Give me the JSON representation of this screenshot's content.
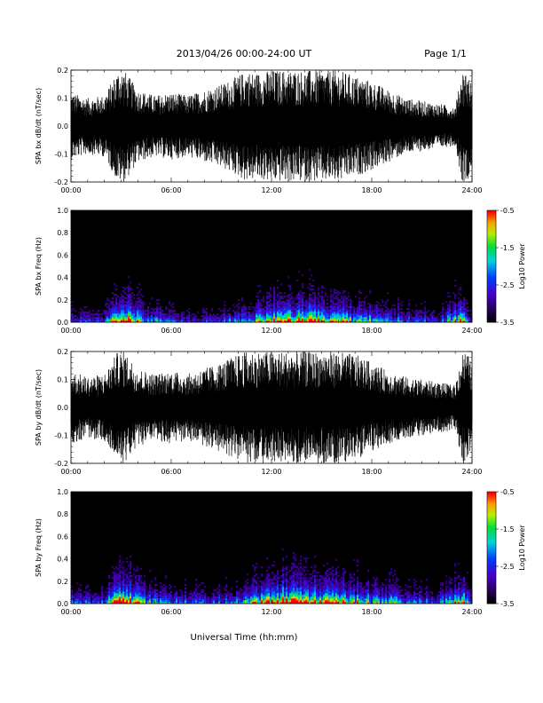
{
  "header": {
    "date_range": "2013/04/26  00:00-24:00 UT",
    "page": "Page 1/1"
  },
  "chart_data": [
    {
      "type": "line",
      "ylabel": "SPA bx dB/dt (nT/sec)",
      "ylim": [
        -0.2,
        0.2
      ],
      "yticks": [
        "0.2",
        "0.1",
        "0.0",
        "-0.1",
        "-0.2"
      ],
      "xlim": [
        "00:00",
        "24:00"
      ],
      "xticks": [
        "00:00",
        "06:00",
        "12:00",
        "18:00",
        "24:00"
      ],
      "envelope_hours": [
        0,
        1,
        2,
        2.8,
        3.2,
        4,
        5,
        6,
        7,
        8,
        9,
        10,
        10.5,
        11,
        12,
        13,
        14,
        15,
        16,
        17,
        18,
        19,
        20,
        21,
        22,
        23,
        23.4,
        23.7,
        24
      ],
      "envelope_amplitude": [
        0.12,
        0.1,
        0.11,
        0.2,
        0.2,
        0.13,
        0.11,
        0.12,
        0.11,
        0.13,
        0.15,
        0.18,
        0.2,
        0.19,
        0.2,
        0.2,
        0.2,
        0.2,
        0.2,
        0.18,
        0.16,
        0.13,
        0.1,
        0.09,
        0.08,
        0.07,
        0.2,
        0.2,
        0.14
      ]
    },
    {
      "type": "heatmap",
      "ylabel": "SPA bx Freq (Hz)",
      "ylim": [
        0.0,
        1.0
      ],
      "yticks": [
        "1.0",
        "0.8",
        "0.6",
        "0.4",
        "0.2",
        "0.0"
      ],
      "xlim": [
        "00:00",
        "24:00"
      ],
      "xticks": [
        "00:00",
        "06:00",
        "12:00",
        "18:00",
        "24:00"
      ],
      "colorbar": {
        "label": "Log10 Power",
        "range": [
          -3.5,
          -0.5
        ],
        "ticks": [
          "-0.5",
          "-1.5",
          "-2.5",
          "-3.5"
        ]
      },
      "activity_hours": [
        0,
        1,
        2,
        2.8,
        3.5,
        4.5,
        6,
        8,
        10,
        11.5,
        12.5,
        13.5,
        14.5,
        15.5,
        17,
        18.5,
        20,
        22,
        23.4,
        24
      ],
      "activity_level": [
        0.35,
        0.3,
        0.35,
        1.0,
        0.85,
        0.5,
        0.35,
        0.3,
        0.4,
        0.65,
        0.8,
        0.85,
        0.8,
        0.7,
        0.6,
        0.5,
        0.4,
        0.3,
        0.8,
        0.3
      ]
    },
    {
      "type": "line",
      "ylabel": "SPA by dB/dt (nT/sec)",
      "ylim": [
        -0.2,
        0.2
      ],
      "yticks": [
        "0.2",
        "0.1",
        "0.0",
        "-0.1",
        "-0.2"
      ],
      "xlim": [
        "00:00",
        "24:00"
      ],
      "xticks": [
        "00:00",
        "06:00",
        "12:00",
        "18:00",
        "24:00"
      ],
      "envelope_hours": [
        0,
        1,
        2,
        2.8,
        3.2,
        4,
        5,
        6,
        7,
        8,
        9,
        10,
        10.5,
        11,
        12,
        13,
        14,
        15,
        16,
        17,
        18,
        19,
        20,
        21,
        22,
        23,
        23.4,
        23.7,
        24
      ],
      "envelope_amplitude": [
        0.13,
        0.11,
        0.12,
        0.2,
        0.2,
        0.14,
        0.12,
        0.13,
        0.12,
        0.14,
        0.16,
        0.19,
        0.2,
        0.2,
        0.2,
        0.2,
        0.2,
        0.2,
        0.2,
        0.19,
        0.16,
        0.13,
        0.11,
        0.1,
        0.09,
        0.08,
        0.2,
        0.2,
        0.15
      ]
    },
    {
      "type": "heatmap",
      "ylabel": "SPA by Freq (Hz)",
      "ylim": [
        0.0,
        1.0
      ],
      "yticks": [
        "1.0",
        "0.8",
        "0.6",
        "0.4",
        "0.2",
        "0.0"
      ],
      "xlim": [
        "00:00",
        "24:00"
      ],
      "xticks": [
        "00:00",
        "06:00",
        "12:00",
        "18:00",
        "24:00"
      ],
      "colorbar": {
        "label": "Log10 Power",
        "range": [
          -3.5,
          -0.5
        ],
        "ticks": [
          "-0.5",
          "-1.5",
          "-2.5",
          "-3.5"
        ]
      },
      "activity_hours": [
        0,
        1,
        2,
        2.8,
        3.5,
        4.5,
        6,
        8,
        10,
        11.5,
        12.5,
        13.5,
        14.5,
        15.5,
        17,
        18.5,
        20,
        22,
        23.4,
        24
      ],
      "activity_level": [
        0.4,
        0.35,
        0.4,
        1.0,
        0.9,
        0.55,
        0.4,
        0.35,
        0.45,
        0.75,
        0.9,
        0.9,
        0.85,
        0.75,
        0.65,
        0.55,
        0.45,
        0.35,
        0.8,
        0.35
      ]
    }
  ],
  "xaxis_title": "Universal Time (hh:mm)"
}
